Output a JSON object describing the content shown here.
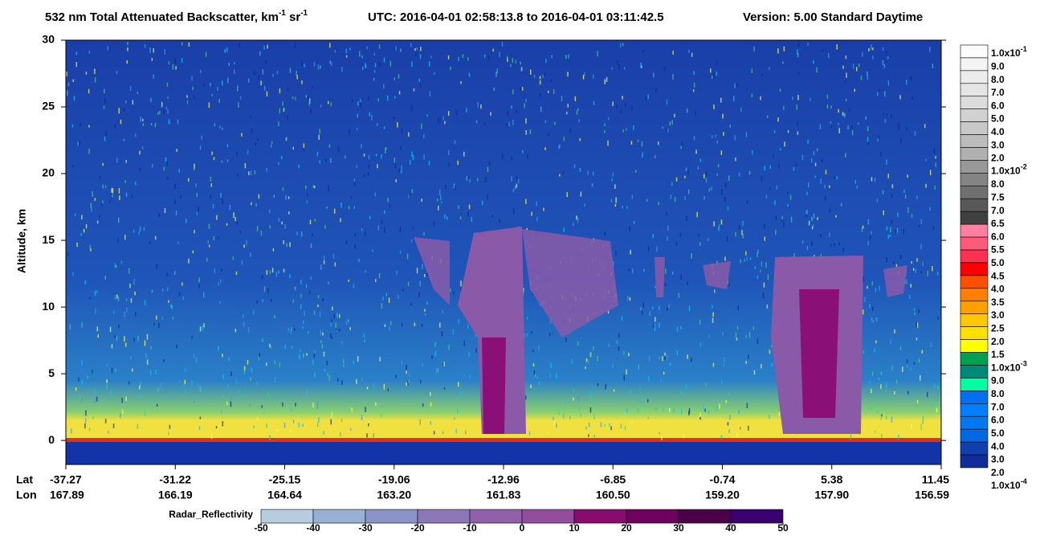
{
  "chart_data": {
    "type": "curtain",
    "title_parts": [
      "532 nm Total Attenuated Backscatter, km",
      "-1",
      " sr",
      "-1"
    ],
    "utc": "UTC:  2016-04-01 02:58:13.8  to  2016-04-01 03:11:42.5",
    "version": "Version: 5.00  Standard  Daytime",
    "ylabel": "Altitude, km",
    "ylim": [
      -1.8,
      30
    ],
    "yticks": [
      0,
      5,
      10,
      15,
      20,
      25,
      30
    ],
    "lat_label": "Lat",
    "lon_label": "Lon",
    "lat_ticks": [
      "-37.27",
      "-31.22",
      "-25.15",
      "-19.06",
      "-12.96",
      "-6.85",
      "-0.74",
      "5.38",
      "11.45"
    ],
    "lon_ticks": [
      "167.89",
      "166.19",
      "164.64",
      "163.20",
      "161.83",
      "160.50",
      "159.20",
      "157.90",
      "156.59"
    ],
    "colorbar_labels": [
      {
        "text": "1.0x10",
        "sup": "-1"
      },
      "9.0",
      "8.0",
      "7.0",
      "6.0",
      "5.0",
      "4.0",
      "3.0",
      "2.0",
      {
        "text": "1.0x10",
        "sup": "-2"
      },
      "8.0",
      "7.5",
      "7.0",
      "6.5",
      "6.0",
      "5.5",
      "5.0",
      "4.5",
      "4.0",
      "3.5",
      "3.0",
      "2.5",
      "2.0",
      "1.5",
      {
        "text": "1.0x10",
        "sup": "-3"
      },
      "9.0",
      "8.0",
      "7.0",
      "6.0",
      "5.0",
      "4.0",
      "3.0",
      "2.0",
      {
        "text": "1.0x10",
        "sup": "-4"
      }
    ],
    "colorbar_colors": [
      "#fcfcfc",
      "#f4f4f4",
      "#ececec",
      "#e4e4e4",
      "#dcdcdc",
      "#d2d2d2",
      "#c8c8c8",
      "#bcbcbc",
      "#b0b0b0",
      "#989898",
      "#848484",
      "#707070",
      "#585858",
      "#404040",
      "#ff80a0",
      "#ff5a78",
      "#ff3050",
      "#ff0000",
      "#ff5000",
      "#ff8000",
      "#ffa000",
      "#ffc800",
      "#ffe000",
      "#ffff00",
      "#00a050",
      "#008878",
      "#00ffa0",
      "#0070f0",
      "#0080ff",
      "#0078f0",
      "#0068e0",
      "#1040b0",
      "#102c98"
    ],
    "radar": {
      "label": "Radar_Reflectivity",
      "lim": [
        -50,
        50
      ],
      "ticks": [
        -50,
        -40,
        -30,
        -20,
        -10,
        0,
        10,
        20,
        30,
        40,
        50
      ],
      "colors": [
        "#b8cce0",
        "#98b0d4",
        "#8a94c8",
        "#8a78b8",
        "#9060a8",
        "#944c9c",
        "#880c70",
        "#700060",
        "#4c0048",
        "#3a0070"
      ]
    }
  }
}
